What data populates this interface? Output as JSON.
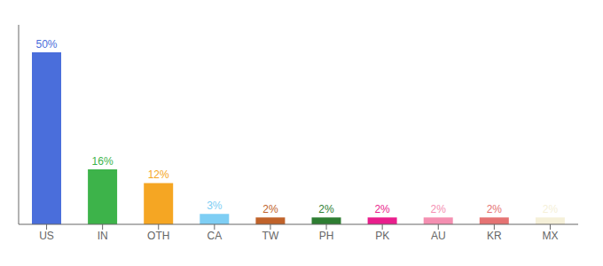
{
  "chart_data": {
    "type": "bar",
    "categories": [
      "US",
      "IN",
      "OTH",
      "CA",
      "TW",
      "PH",
      "PK",
      "AU",
      "KR",
      "MX"
    ],
    "values": [
      50,
      16,
      12,
      3,
      2,
      2,
      2,
      2,
      2,
      2
    ],
    "colors": [
      "#4a6edb",
      "#3db34a",
      "#f5a623",
      "#7ecef4",
      "#c0622a",
      "#2e7d32",
      "#e91e8c",
      "#f48fb1",
      "#e57373",
      "#f5f0d8"
    ],
    "ylim": [
      0,
      58
    ],
    "data_labels": true,
    "value_labels": [
      "50%",
      "16%",
      "12%",
      "3%",
      "2%",
      "2%",
      "2%",
      "2%",
      "2%",
      "2%"
    ],
    "tick_labels": "x",
    "grid": false
  }
}
